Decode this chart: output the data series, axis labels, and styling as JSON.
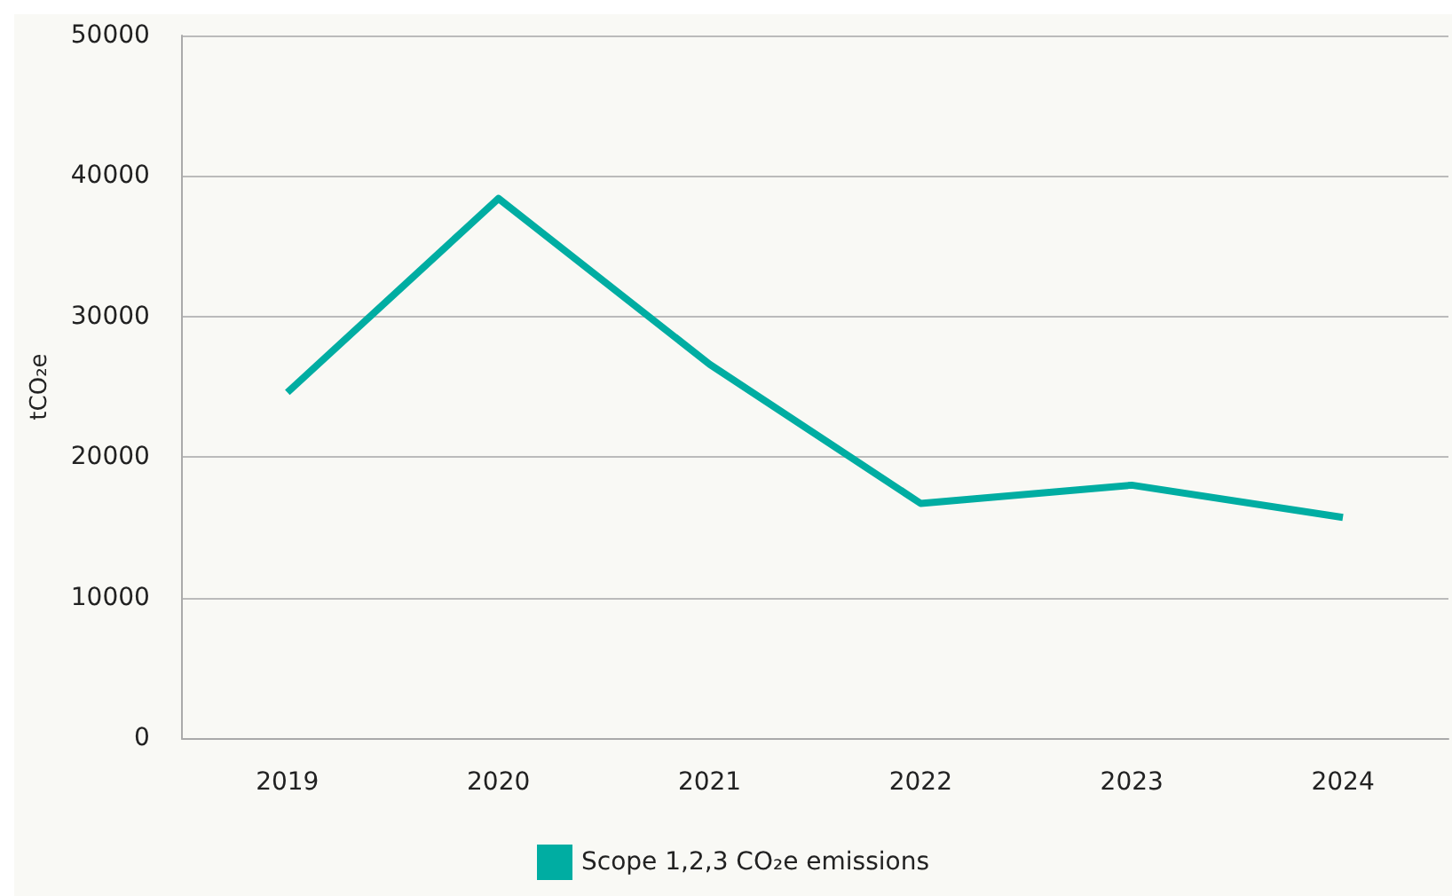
{
  "chart_data": {
    "type": "line",
    "ylabel": "tCO₂e",
    "categories": [
      "2019",
      "2020",
      "2021",
      "2022",
      "2023",
      "2024"
    ],
    "series": [
      {
        "name": "Scope 1,2,3 CO₂e emissions",
        "color": "#00ada2",
        "values": [
          24600,
          38400,
          26600,
          16700,
          18000,
          15700
        ]
      }
    ],
    "ylim": [
      0,
      50000
    ],
    "yticks": [
      0,
      10000,
      20000,
      30000,
      40000,
      50000
    ],
    "grid": "y",
    "legend": "bottom",
    "marker": "none"
  }
}
